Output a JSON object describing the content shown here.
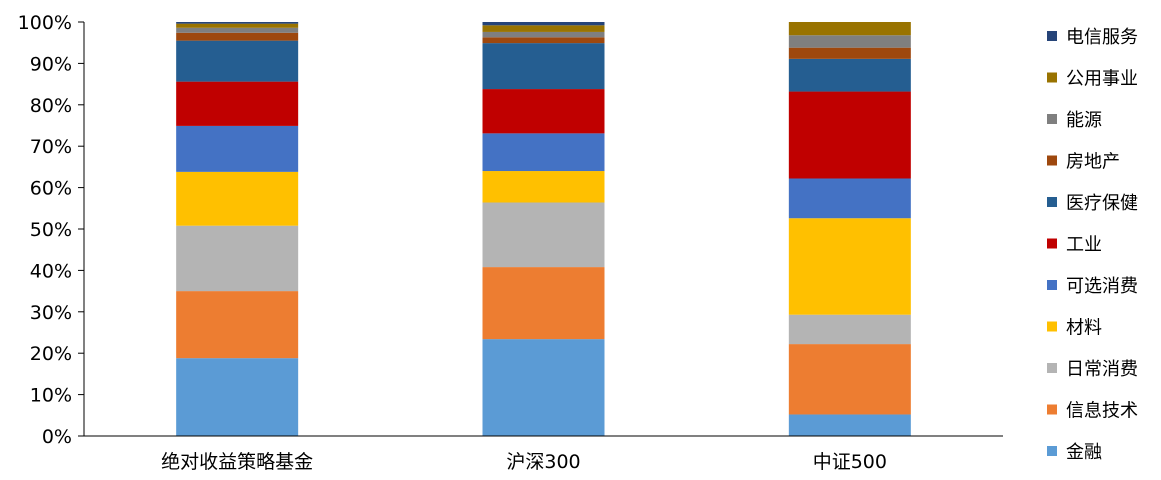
{
  "chart_data": {
    "type": "stacked_bar_100",
    "categories": [
      "绝对收益策略基金",
      "沪深300",
      "中证500"
    ],
    "y_ticks": [
      "0%",
      "10%",
      "20%",
      "30%",
      "40%",
      "50%",
      "60%",
      "70%",
      "80%",
      "90%",
      "100%"
    ],
    "ylim": [
      0,
      100
    ],
    "legend_position": "right",
    "grid": false,
    "series": [
      {
        "name": "金融",
        "color": "#5b9bd5",
        "values": [
          18.8,
          23.4,
          5.2
        ]
      },
      {
        "name": "信息技术",
        "color": "#ed7d31",
        "values": [
          16.2,
          17.4,
          17.0
        ]
      },
      {
        "name": "日常消费",
        "color": "#b4b4b4",
        "values": [
          15.8,
          15.6,
          7.1
        ]
      },
      {
        "name": "材料",
        "color": "#ffc000",
        "values": [
          13.0,
          7.6,
          23.3
        ]
      },
      {
        "name": "可选消费",
        "color": "#4472c4",
        "values": [
          11.1,
          9.1,
          9.6
        ]
      },
      {
        "name": "工业",
        "color": "#c00000",
        "values": [
          10.7,
          10.7,
          21.0
        ]
      },
      {
        "name": "医疗保健",
        "color": "#255e91",
        "values": [
          9.9,
          11.1,
          7.9
        ]
      },
      {
        "name": "房地产",
        "color": "#9e480e",
        "values": [
          1.9,
          1.4,
          2.7
        ]
      },
      {
        "name": "能源",
        "color": "#7f7f7f",
        "values": [
          1.2,
          1.3,
          3.0
        ]
      },
      {
        "name": "公用事业",
        "color": "#997300",
        "values": [
          1.0,
          1.6,
          3.2
        ]
      },
      {
        "name": "电信服务",
        "color": "#264478",
        "values": [
          0.4,
          0.8,
          0.0
        ]
      }
    ]
  }
}
